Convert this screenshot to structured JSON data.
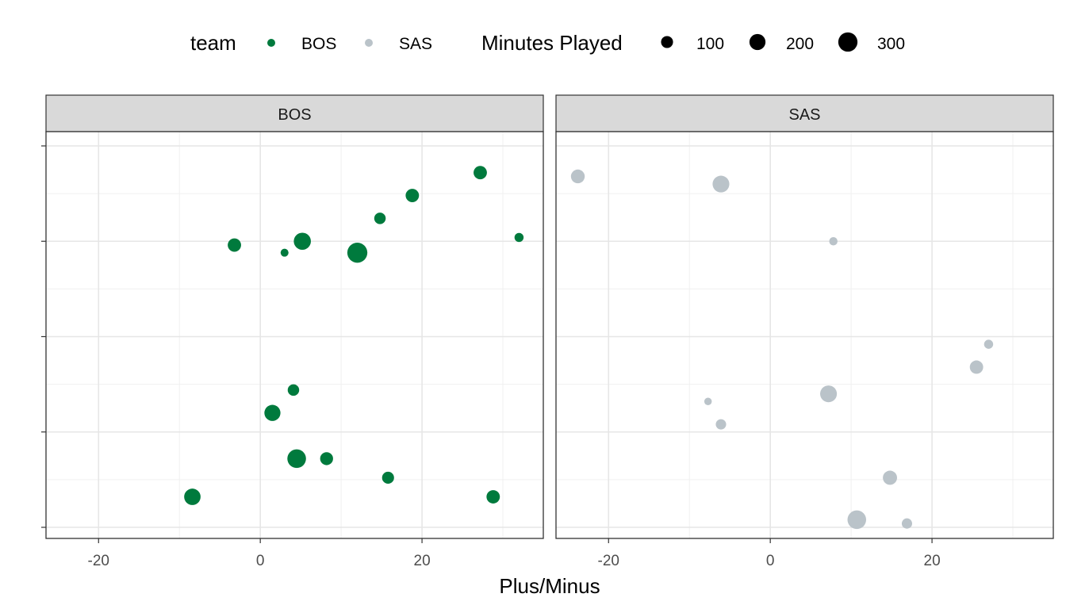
{
  "chart_data": {
    "type": "scatter",
    "xlabel": "Plus/Minus",
    "ylabel": "",
    "xlim": [
      -26.5,
      35
    ],
    "ylim": [
      0,
      1
    ],
    "x_ticks": [
      -20,
      0,
      20
    ],
    "grid": true,
    "legend_position": "top",
    "legend": {
      "color_title": "team",
      "size_title": "Minutes Played",
      "color_entries": [
        {
          "label": "BOS",
          "color": "#007a3d"
        },
        {
          "label": "SAS",
          "color": "#bac3c9"
        }
      ],
      "size_entries": [
        {
          "label": "100",
          "value": 100
        },
        {
          "label": "200",
          "value": 200
        },
        {
          "label": "300",
          "value": 300
        }
      ]
    },
    "facets": [
      {
        "label": "BOS",
        "color": "#007a3d",
        "points": [
          {
            "x": 27.2,
            "y": 0.96,
            "minutes": 130
          },
          {
            "x": 18.8,
            "y": 0.9,
            "minutes": 130
          },
          {
            "x": 14.8,
            "y": 0.84,
            "minutes": 90
          },
          {
            "x": 32.0,
            "y": 0.79,
            "minutes": 50
          },
          {
            "x": -3.2,
            "y": 0.77,
            "minutes": 130
          },
          {
            "x": 5.2,
            "y": 0.78,
            "minutes": 230
          },
          {
            "x": 3.0,
            "y": 0.75,
            "minutes": 35
          },
          {
            "x": 12.0,
            "y": 0.75,
            "minutes": 330
          },
          {
            "x": 4.1,
            "y": 0.39,
            "minutes": 90
          },
          {
            "x": 1.5,
            "y": 0.33,
            "minutes": 200
          },
          {
            "x": 4.5,
            "y": 0.21,
            "minutes": 280
          },
          {
            "x": 8.2,
            "y": 0.21,
            "minutes": 120
          },
          {
            "x": 15.8,
            "y": 0.16,
            "minutes": 100
          },
          {
            "x": -8.4,
            "y": 0.11,
            "minutes": 210
          },
          {
            "x": 28.8,
            "y": 0.11,
            "minutes": 130
          }
        ]
      },
      {
        "label": "SAS",
        "color": "#bac3c9",
        "points": [
          {
            "x": -23.8,
            "y": 0.95,
            "minutes": 140
          },
          {
            "x": -6.1,
            "y": 0.93,
            "minutes": 220
          },
          {
            "x": 7.8,
            "y": 0.78,
            "minutes": 40
          },
          {
            "x": 27.0,
            "y": 0.51,
            "minutes": 50
          },
          {
            "x": 25.5,
            "y": 0.45,
            "minutes": 130
          },
          {
            "x": 7.2,
            "y": 0.38,
            "minutes": 220
          },
          {
            "x": -7.7,
            "y": 0.36,
            "minutes": 30
          },
          {
            "x": -6.1,
            "y": 0.3,
            "minutes": 70
          },
          {
            "x": 14.8,
            "y": 0.16,
            "minutes": 150
          },
          {
            "x": 10.7,
            "y": 0.05,
            "minutes": 280
          },
          {
            "x": 16.9,
            "y": 0.04,
            "minutes": 70
          }
        ]
      }
    ]
  }
}
